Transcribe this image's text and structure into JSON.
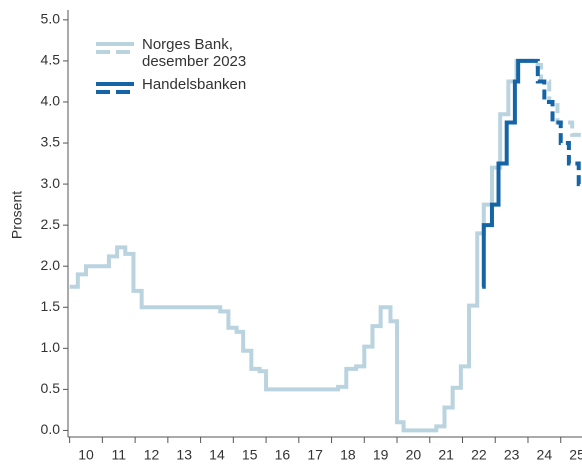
{
  "chart_data": {
    "type": "step-line",
    "y_label": "Prosent",
    "xlim": [
      2009.95,
      2025.65
    ],
    "ylim": [
      -0.08,
      5.12
    ],
    "xticks": [
      {
        "value": 2010,
        "label": "10"
      },
      {
        "value": 2011,
        "label": "11"
      },
      {
        "value": 2012,
        "label": "12"
      },
      {
        "value": 2013,
        "label": "13"
      },
      {
        "value": 2014,
        "label": "14"
      },
      {
        "value": 2015,
        "label": "15"
      },
      {
        "value": 2016,
        "label": "16"
      },
      {
        "value": 2017,
        "label": "17"
      },
      {
        "value": 2018,
        "label": "18"
      },
      {
        "value": 2019,
        "label": "19"
      },
      {
        "value": 2020,
        "label": "20"
      },
      {
        "value": 2021,
        "label": "21"
      },
      {
        "value": 2022,
        "label": "22"
      },
      {
        "value": 2023,
        "label": "23"
      },
      {
        "value": 2024,
        "label": "24"
      },
      {
        "value": 2025,
        "label": "25"
      }
    ],
    "yticks": [
      {
        "value": 0,
        "label": "0.0"
      },
      {
        "value": 0.5,
        "label": "0.5"
      },
      {
        "value": 1,
        "label": "1.0"
      },
      {
        "value": 1.5,
        "label": "1.5"
      },
      {
        "value": 2,
        "label": "2.0"
      },
      {
        "value": 2.5,
        "label": "2.5"
      },
      {
        "value": 3,
        "label": "3.0"
      },
      {
        "value": 3.5,
        "label": "3.5"
      },
      {
        "value": 4,
        "label": "4.0"
      },
      {
        "value": 4.5,
        "label": "4.5"
      },
      {
        "value": 5,
        "label": "5.0"
      }
    ],
    "grid": false,
    "legend": "upper left",
    "series": [
      {
        "name": "Norges Bank, desember 2023",
        "color": "#b9d3df",
        "forecast_start": 2023.9,
        "x": [
          2010.0,
          2010.25,
          2010.5,
          2011.2,
          2011.45,
          2011.7,
          2011.95,
          2012.2,
          2014.6,
          2014.85,
          2015.1,
          2015.3,
          2015.55,
          2015.8,
          2016.0,
          2018.2,
          2018.45,
          2018.75,
          2019.0,
          2019.25,
          2019.5,
          2019.8,
          2020.0,
          2020.2,
          2021.2,
          2021.45,
          2021.7,
          2021.95,
          2022.2,
          2022.45,
          2022.65,
          2022.9,
          2023.15,
          2023.4,
          2023.65,
          2023.9,
          2024.15,
          2024.4,
          2024.65,
          2024.9,
          2025.35
        ],
        "values": [
          1.75,
          1.9,
          2.0,
          2.12,
          2.23,
          2.15,
          1.7,
          1.5,
          1.45,
          1.25,
          1.2,
          0.97,
          0.75,
          0.72,
          0.5,
          0.53,
          0.75,
          0.78,
          1.02,
          1.27,
          1.5,
          1.33,
          0.1,
          0.0,
          0.05,
          0.28,
          0.52,
          0.78,
          1.52,
          2.4,
          2.75,
          3.2,
          3.85,
          4.25,
          4.5,
          4.5,
          4.45,
          4.25,
          4.0,
          3.75,
          3.6
        ]
      },
      {
        "name": "Handelsbanken",
        "color": "#1565a6",
        "forecast_start": 2024.0,
        "x": [
          2022.6,
          2022.65,
          2022.9,
          2023.1,
          2023.35,
          2023.6,
          2023.7,
          2024.0,
          2024.3,
          2024.5,
          2024.75,
          2025.0,
          2025.25,
          2025.55
        ],
        "values": [
          1.75,
          2.5,
          2.75,
          3.25,
          3.75,
          4.25,
          4.5,
          4.5,
          4.25,
          4.0,
          3.75,
          3.5,
          3.25,
          3.0
        ]
      }
    ]
  }
}
